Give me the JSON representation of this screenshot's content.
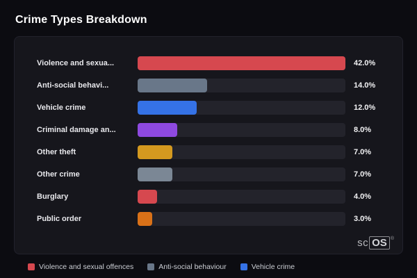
{
  "page": {
    "title": "Crime Types Breakdown"
  },
  "chart_data": {
    "type": "bar",
    "orientation": "horizontal",
    "title": "Crime Types Breakdown",
    "categories": [
      "Violence and sexua...",
      "Anti-social behavi...",
      "Vehicle crime",
      "Criminal damage an...",
      "Other theft",
      "Other crime",
      "Burglary",
      "Public order"
    ],
    "values": [
      42.0,
      14.0,
      12.0,
      8.0,
      7.0,
      7.0,
      4.0,
      3.0
    ],
    "value_labels": [
      "42.0%",
      "14.0%",
      "12.0%",
      "8.0%",
      "7.0%",
      "7.0%",
      "4.0%",
      "3.0%"
    ],
    "bar_colors": [
      "#d6484f",
      "#697789",
      "#3572e6",
      "#8e49e0",
      "#d4991f",
      "#7b8795",
      "#d6484f",
      "#d97118"
    ],
    "xlim": [
      0,
      42
    ],
    "grid": false,
    "legend_position": "bottom",
    "legend": [
      {
        "label": "Violence and sexual offences",
        "color": "#d6484f"
      },
      {
        "label": "Anti-social behaviour",
        "color": "#697789"
      },
      {
        "label": "Vehicle crime",
        "color": "#3572e6"
      }
    ]
  },
  "watermark": {
    "prefix": "sc",
    "boxed": "OS",
    "reg": "®"
  },
  "colors": {
    "page_bg": "#0c0c11",
    "card_bg": "#16161c",
    "track": "#23232b"
  }
}
